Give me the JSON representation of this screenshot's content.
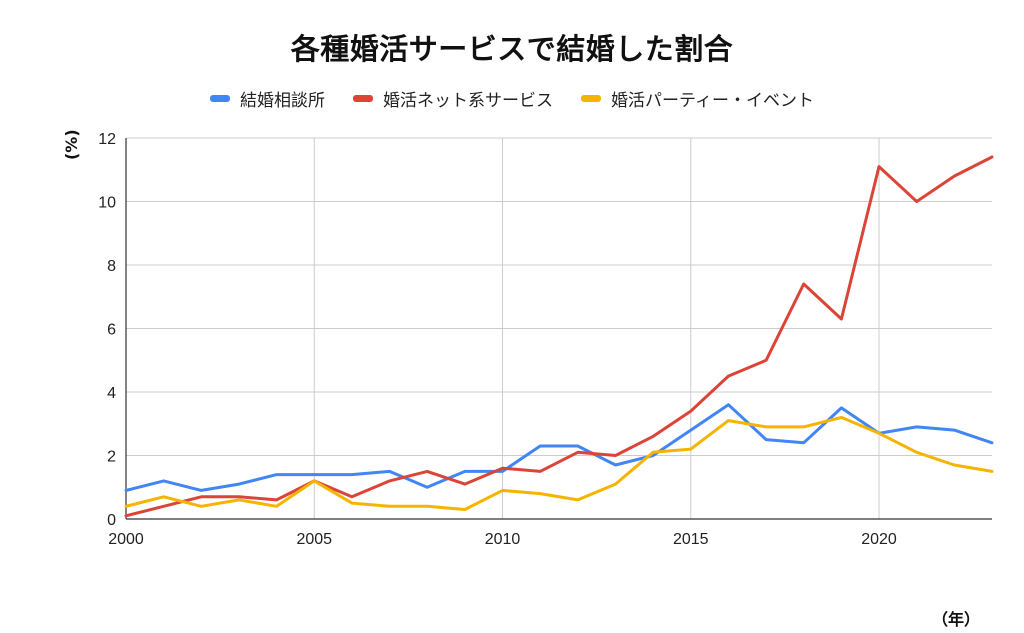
{
  "chart_data": {
    "type": "line",
    "title": "各種婚活サービスで結婚した割合",
    "ylabel": "(%)",
    "xlabel": "（年）",
    "ylim": [
      0,
      12
    ],
    "xlim": [
      2000,
      2023
    ],
    "yticks": [
      0,
      2,
      4,
      6,
      8,
      10,
      12
    ],
    "xticks": [
      2000,
      2005,
      2010,
      2015,
      2020
    ],
    "grid": true,
    "legend_position": "top-center",
    "x": [
      2000,
      2001,
      2002,
      2003,
      2004,
      2005,
      2006,
      2007,
      2008,
      2009,
      2010,
      2011,
      2012,
      2013,
      2014,
      2015,
      2016,
      2017,
      2018,
      2019,
      2020,
      2021,
      2022,
      2023
    ],
    "series": [
      {
        "name": "結婚相談所",
        "color": "#4285f4",
        "values": [
          0.9,
          1.2,
          0.9,
          1.1,
          1.4,
          1.4,
          1.4,
          1.5,
          1.0,
          1.5,
          1.5,
          2.3,
          2.3,
          1.7,
          2.0,
          2.8,
          3.6,
          2.5,
          2.4,
          3.5,
          2.7,
          2.9,
          2.8,
          2.4
        ]
      },
      {
        "name": "婚活ネット系サービス",
        "color": "#db4437",
        "values": [
          0.1,
          0.4,
          0.7,
          0.7,
          0.6,
          1.2,
          0.7,
          1.2,
          1.5,
          1.1,
          1.6,
          1.5,
          2.1,
          2.0,
          2.6,
          3.4,
          4.5,
          5.0,
          7.4,
          6.3,
          11.1,
          10.0,
          10.8,
          11.4
        ]
      },
      {
        "name": "婚活パーティー・イベント",
        "color": "#f4b400",
        "values": [
          0.4,
          0.7,
          0.4,
          0.6,
          0.4,
          1.2,
          0.5,
          0.4,
          0.4,
          0.3,
          0.9,
          0.8,
          0.6,
          1.1,
          2.1,
          2.2,
          3.1,
          2.9,
          2.9,
          3.2,
          2.7,
          2.1,
          1.7,
          1.5
        ]
      }
    ]
  }
}
